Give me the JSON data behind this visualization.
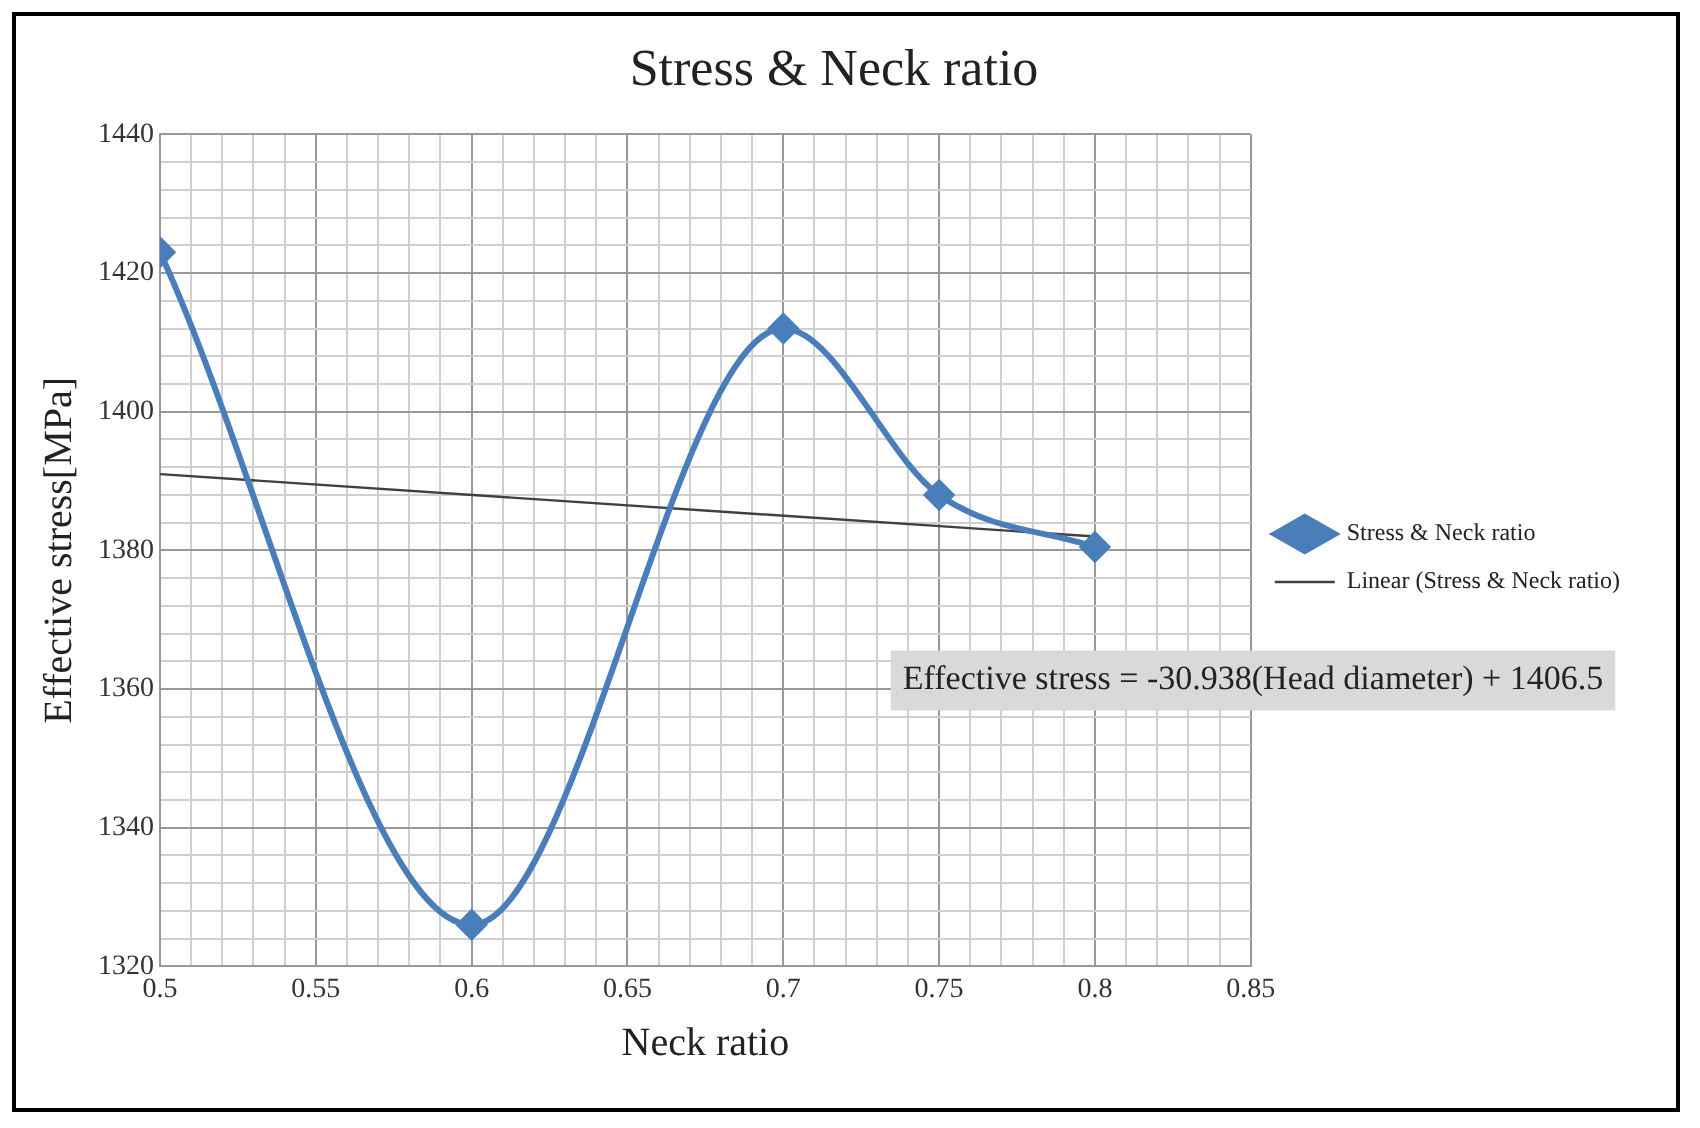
{
  "chart_data": {
    "type": "line",
    "title": "Stress & Neck ratio",
    "xlabel": "Neck ratio",
    "ylabel": "Effective stress[MPa]",
    "series": [
      {
        "name": "Stress & Neck ratio",
        "color": "#4a7ebb",
        "x": [
          0.5,
          0.6,
          0.7,
          0.75,
          0.8
        ],
        "values": [
          1423,
          1326,
          1412,
          1388,
          1380.5
        ],
        "marker": "diamond"
      },
      {
        "name": "Linear (Stress & Neck ratio)",
        "color": "#404040",
        "x": [
          0.5,
          0.8
        ],
        "values": [
          1391,
          1382
        ],
        "marker": "none"
      }
    ],
    "xlim": [
      0.5,
      0.85
    ],
    "ylim": [
      1320,
      1440
    ],
    "xticks": [
      0.5,
      {
        "value": 0.51,
        "label": null
      },
      {
        "value": 0.52,
        "label": null
      },
      {
        "value": 0.53,
        "label": null
      },
      {
        "value": 0.54,
        "label": null
      },
      0.55,
      {
        "value": 0.56,
        "label": null
      },
      {
        "value": 0.57,
        "label": null
      },
      {
        "value": 0.58,
        "label": null
      },
      {
        "value": 0.59,
        "label": null
      },
      0.6,
      {
        "value": 0.61,
        "label": null
      },
      {
        "value": 0.62,
        "label": null
      },
      {
        "value": 0.63,
        "label": null
      },
      {
        "value": 0.64,
        "label": null
      },
      0.65,
      {
        "value": 0.66,
        "label": null
      },
      {
        "value": 0.67,
        "label": null
      },
      {
        "value": 0.68,
        "label": null
      },
      {
        "value": 0.69,
        "label": null
      },
      0.7,
      {
        "value": 0.71,
        "label": null
      },
      {
        "value": 0.72,
        "label": null
      },
      {
        "value": 0.73,
        "label": null
      },
      {
        "value": 0.74,
        "label": null
      },
      0.75,
      {
        "value": 0.76,
        "label": null
      },
      {
        "value": 0.77,
        "label": null
      },
      {
        "value": 0.78,
        "label": null
      },
      {
        "value": 0.79,
        "label": null
      },
      0.8,
      {
        "value": 0.81,
        "label": null
      },
      {
        "value": 0.82,
        "label": null
      },
      {
        "value": 0.83,
        "label": null
      },
      {
        "value": 0.84,
        "label": null
      },
      0.85
    ],
    "yticks": [
      1320,
      {
        "value": 1324,
        "label": null
      },
      {
        "value": 1328,
        "label": null
      },
      {
        "value": 1332,
        "label": null
      },
      {
        "value": 1336,
        "label": null
      },
      1340,
      {
        "value": 1344,
        "label": null
      },
      {
        "value": 1348,
        "label": null
      },
      {
        "value": 1352,
        "label": null
      },
      {
        "value": 1356,
        "label": null
      },
      1360,
      {
        "value": 1364,
        "label": null
      },
      {
        "value": 1368,
        "label": null
      },
      {
        "value": 1372,
        "label": null
      },
      {
        "value": 1376,
        "label": null
      },
      1380,
      {
        "value": 1384,
        "label": null
      },
      {
        "value": 1388,
        "label": null
      },
      {
        "value": 1392,
        "label": null
      },
      {
        "value": 1396,
        "label": null
      },
      1400,
      {
        "value": 1404,
        "label": null
      },
      {
        "value": 1408,
        "label": null
      },
      {
        "value": 1412,
        "label": null
      },
      {
        "value": 1416,
        "label": null
      },
      1420,
      {
        "value": 1424,
        "label": null
      },
      {
        "value": 1428,
        "label": null
      },
      {
        "value": 1432,
        "label": null
      },
      {
        "value": 1436,
        "label": null
      },
      1440
    ],
    "grid": true,
    "legend": "right",
    "line_style": "solid",
    "annotations": [
      "Effective stress = -30.938(Head diameter) + 1406.5"
    ]
  }
}
